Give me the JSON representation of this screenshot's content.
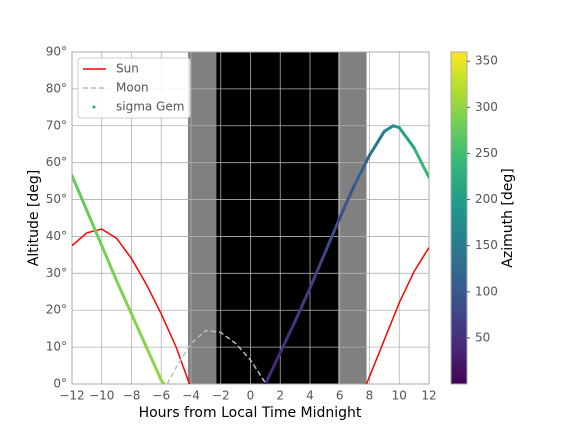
{
  "chart_data": {
    "type": "line",
    "xlabel": "Hours from Local Time Midnight",
    "ylabel": "Altitude [deg]",
    "colorbar_label": "Azimuth [deg]",
    "xlim": [
      -12,
      12
    ],
    "ylim": [
      0,
      90
    ],
    "clim": [
      0,
      360
    ],
    "grid": true,
    "legend": "upper left",
    "colormap": "viridis",
    "xticks": [
      {
        "value": -12,
        "label": "−12"
      },
      {
        "value": -10,
        "label": "−10"
      },
      {
        "value": -8,
        "label": "−8"
      },
      {
        "value": -6,
        "label": "−6"
      },
      {
        "value": -4,
        "label": "−4"
      },
      {
        "value": -2,
        "label": "−2"
      },
      0,
      2,
      4,
      6,
      8,
      10,
      12
    ],
    "yticks": [
      {
        "value": 0,
        "label": "0°"
      },
      {
        "value": 10,
        "label": "10°"
      },
      {
        "value": 20,
        "label": "20°"
      },
      {
        "value": 30,
        "label": "30°"
      },
      {
        "value": 40,
        "label": "40°"
      },
      {
        "value": 50,
        "label": "50°"
      },
      {
        "value": 60,
        "label": "60°"
      },
      {
        "value": 70,
        "label": "70°"
      },
      {
        "value": 80,
        "label": "80°"
      },
      {
        "value": 90,
        "label": "90°"
      }
    ],
    "cticks": [
      50,
      100,
      150,
      200,
      250,
      300,
      350
    ],
    "shading": [
      {
        "start": -4.2,
        "end": -2.3,
        "color": "#808080"
      },
      {
        "start": -2.3,
        "end": 5.9,
        "color": "#000000"
      },
      {
        "start": 5.9,
        "end": 7.8,
        "color": "#808080"
      }
    ],
    "series": [
      {
        "name": "Sun",
        "color": "#ff0000",
        "style": "solid",
        "x": [
          -12,
          -11,
          -10,
          -9,
          -8,
          -7,
          -6,
          -5,
          -4.1,
          7.8,
          9,
          10,
          11,
          12
        ],
        "values": [
          37.5,
          41,
          42,
          39.5,
          34,
          27,
          19,
          10,
          0,
          0,
          12,
          22,
          30.5,
          37
        ]
      },
      {
        "name": "Moon",
        "color": "#bbbbbb",
        "style": "dashed",
        "x": [
          -5.6,
          -5,
          -4,
          -3,
          -2,
          -1,
          0,
          1.05
        ],
        "values": [
          0,
          4.5,
          11,
          14.5,
          14,
          11,
          6.5,
          0
        ]
      },
      {
        "name": "sigma Gem",
        "color": "#21a585",
        "style": "scatter",
        "x": [
          -12,
          -11,
          -10,
          -9,
          -8,
          -7,
          -6,
          -5.8,
          1,
          2,
          3,
          4,
          5,
          6,
          7,
          8,
          9,
          9.6,
          10,
          11,
          12
        ],
        "values": [
          56.5,
          47,
          37.5,
          28,
          19,
          10,
          1,
          0,
          0,
          8.5,
          17,
          26,
          35.5,
          45,
          54,
          62,
          68.5,
          70,
          69.5,
          64,
          56
        ],
        "azimuth": [
          272,
          278,
          283,
          288,
          292,
          296,
          300,
          301,
          40,
          48,
          56,
          64,
          74,
          86,
          102,
          125,
          160,
          180,
          195,
          225,
          250
        ]
      }
    ]
  }
}
